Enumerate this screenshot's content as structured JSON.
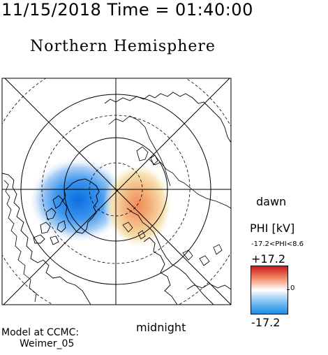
{
  "header": {
    "timestamp": "11/15/2018 Time = 01:40:00",
    "title": "Northern Hemisphere"
  },
  "map": {
    "projection": "polar stereographic, north pole centered",
    "orientation_labels": {
      "dawn": "dawn",
      "midnight": "midnight"
    },
    "grid": "latitude circles and meridian lines",
    "continents": [
      "Greenland",
      "North America",
      "Europe",
      "Asia"
    ],
    "potential_cells": [
      {
        "sign": "negative",
        "color": "#1a7fe6",
        "side": "left of pole (over Greenland)"
      },
      {
        "sign": "positive",
        "color": "#f0a070",
        "side": "right of pole"
      }
    ]
  },
  "legend": {
    "title": "PHI [kV]",
    "range_text": "-17.2<PHI<8.6",
    "max_label": "+17.2",
    "min_label": "-17.2",
    "zero_label": "0",
    "colors": {
      "max": "#cc1a1a",
      "mid": "#ffffff",
      "min": "#1a8ce6"
    }
  },
  "credit": {
    "line1": "Model at CCMC:",
    "line2": "Weimer_05"
  }
}
